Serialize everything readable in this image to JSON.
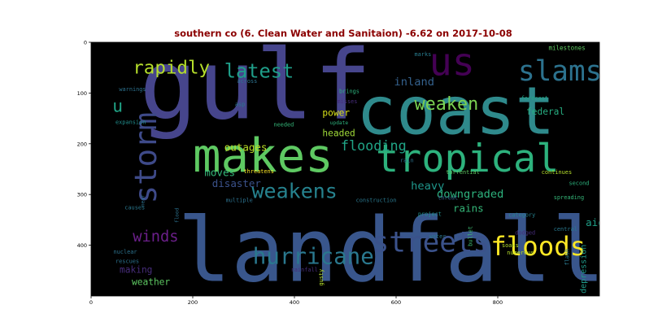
{
  "chart_data": {
    "type": "wordcloud",
    "title": "southern co (6. Clean Water and Sanitaion) -6.62 on 2017-10-08",
    "title_color": "#8b0000",
    "background": "#000000",
    "x_ticks": [
      "0",
      "200",
      "400",
      "600",
      "800"
    ],
    "y_ticks": [
      "0",
      "100",
      "200",
      "300",
      "400"
    ],
    "x_tick_values": [
      0,
      200,
      400,
      600,
      800
    ],
    "y_tick_values": [
      0,
      100,
      200,
      300,
      400
    ],
    "xlim": [
      0,
      1000
    ],
    "ylim": [
      500,
      0
    ],
    "words": [
      {
        "text": "gulf",
        "color": "#46458c",
        "x": 95,
        "y": 150,
        "size": 190,
        "rotate": 0
      },
      {
        "text": "coast",
        "color": "#2f8a8c",
        "x": 522,
        "y": 180,
        "size": 130,
        "rotate": 0
      },
      {
        "text": "landfall",
        "color": "#39568c",
        "x": 170,
        "y": 470,
        "size": 175,
        "rotate": 0
      },
      {
        "text": "makes",
        "color": "#5ec962",
        "x": 200,
        "y": 255,
        "size": 92,
        "rotate": 0
      },
      {
        "text": "tropical",
        "color": "#2db27d",
        "x": 560,
        "y": 255,
        "size": 75,
        "rotate": 0
      },
      {
        "text": "us",
        "color": "#440154",
        "x": 665,
        "y": 65,
        "size": 75,
        "rotate": 0
      },
      {
        "text": "storm",
        "color": "#3e4a89",
        "x": 128,
        "y": 318,
        "size": 60,
        "rotate": -90
      },
      {
        "text": "slams",
        "color": "#2c728e",
        "x": 840,
        "y": 75,
        "size": 55,
        "rotate": 0
      },
      {
        "text": "streets",
        "color": "#3b528b",
        "x": 553,
        "y": 413,
        "size": 55,
        "rotate": 0
      },
      {
        "text": "floods",
        "color": "#fde725",
        "x": 786,
        "y": 420,
        "size": 52,
        "rotate": 0
      },
      {
        "text": "hurricane",
        "color": "#2a788e",
        "x": 318,
        "y": 437,
        "size": 44,
        "rotate": 0
      },
      {
        "text": "weakens",
        "color": "#26828e",
        "x": 316,
        "y": 307,
        "size": 40,
        "rotate": 0
      },
      {
        "text": "latest",
        "color": "#1f9e89",
        "x": 262,
        "y": 70,
        "size": 38,
        "rotate": 0
      },
      {
        "text": "rapidly",
        "color": "#b5de2b",
        "x": 82,
        "y": 62,
        "size": 36,
        "rotate": 0
      },
      {
        "text": "weaken",
        "color": "#7ad151",
        "x": 636,
        "y": 133,
        "size": 35,
        "rotate": 0
      },
      {
        "text": "winds",
        "color": "#6b1f8a",
        "x": 82,
        "y": 393,
        "size": 30,
        "rotate": 0
      },
      {
        "text": "u",
        "color": "#20a386",
        "x": 42,
        "y": 137,
        "size": 34,
        "rotate": 0
      },
      {
        "text": "flooding",
        "color": "#20a486",
        "x": 491,
        "y": 213,
        "size": 27,
        "rotate": 0
      },
      {
        "text": "downgraded",
        "color": "#2db27d",
        "x": 680,
        "y": 306,
        "size": 22,
        "rotate": 0
      },
      {
        "text": "inland",
        "color": "#34618d",
        "x": 596,
        "y": 85,
        "size": 22,
        "rotate": 0
      },
      {
        "text": "heavy",
        "color": "#1f968b",
        "x": 629,
        "y": 290,
        "size": 22,
        "rotate": 0
      },
      {
        "text": "moves",
        "color": "#35b779",
        "x": 223,
        "y": 264,
        "size": 20,
        "rotate": 0
      },
      {
        "text": "disaster",
        "color": "#3b528b",
        "x": 238,
        "y": 285,
        "size": 20,
        "rotate": 0
      },
      {
        "text": "outages",
        "color": "#bddf26",
        "x": 262,
        "y": 214,
        "size": 20,
        "rotate": 0
      },
      {
        "text": "power",
        "color": "#d8e219",
        "x": 455,
        "y": 145,
        "size": 18,
        "rotate": 0
      },
      {
        "text": "headed",
        "color": "#a0da39",
        "x": 455,
        "y": 185,
        "size": 18,
        "rotate": 0
      },
      {
        "text": "federal",
        "color": "#27ad81",
        "x": 856,
        "y": 143,
        "size": 18,
        "rotate": 0
      },
      {
        "text": "aid",
        "color": "#1fa088",
        "x": 973,
        "y": 362,
        "size": 20,
        "rotate": 0
      },
      {
        "text": "rains",
        "color": "#35b779",
        "x": 712,
        "y": 334,
        "size": 20,
        "rotate": 0
      },
      {
        "text": "weather",
        "color": "#5ec962",
        "x": 80,
        "y": 478,
        "size": 18,
        "rotate": 0
      },
      {
        "text": "making",
        "color": "#472d7b",
        "x": 56,
        "y": 454,
        "size": 18,
        "rotate": 0
      },
      {
        "text": "depression",
        "color": "#1f9a8a",
        "x": 974,
        "y": 495,
        "size": 16,
        "rotate": -90
      },
      {
        "text": "milestones",
        "color": "#5ec962",
        "x": 900,
        "y": 15,
        "size": 12,
        "rotate": 0
      },
      {
        "text": "forecast",
        "color": "#22a785",
        "x": 846,
        "y": 114,
        "size": 11,
        "rotate": 0
      },
      {
        "text": "expansion",
        "color": "#218e8d",
        "x": 48,
        "y": 161,
        "size": 11,
        "rotate": 0
      },
      {
        "text": "warnings",
        "color": "#2c728e",
        "x": 55,
        "y": 96,
        "size": 11,
        "rotate": 0
      },
      {
        "text": "across",
        "color": "#2c728e",
        "x": 287,
        "y": 80,
        "size": 11,
        "rotate": 0
      },
      {
        "text": "asp",
        "color": "#2a788e",
        "x": 283,
        "y": 126,
        "size": 11,
        "rotate": 0
      },
      {
        "text": "needed",
        "color": "#35b779",
        "x": 359,
        "y": 166,
        "size": 11,
        "rotate": 0
      },
      {
        "text": "update",
        "color": "#2db27d",
        "x": 470,
        "y": 162,
        "size": 10,
        "rotate": 0
      },
      {
        "text": "brings",
        "color": "#2db27d",
        "x": 488,
        "y": 100,
        "size": 11,
        "rotate": 0
      },
      {
        "text": "misses",
        "color": "#472d7b",
        "x": 484,
        "y": 120,
        "size": 11,
        "rotate": 0
      },
      {
        "text": "marks",
        "color": "#287c8e",
        "x": 636,
        "y": 27,
        "size": 11,
        "rotate": 0
      },
      {
        "text": "rain",
        "color": "#2c728e",
        "x": 608,
        "y": 236,
        "size": 11,
        "rotate": 0
      },
      {
        "text": "threatens",
        "color": "#fde725",
        "x": 300,
        "y": 258,
        "size": 11,
        "rotate": 0
      },
      {
        "text": "torrential",
        "color": "#5ec962",
        "x": 698,
        "y": 260,
        "size": 11,
        "rotate": 0
      },
      {
        "text": "continues",
        "color": "#b5de2b",
        "x": 886,
        "y": 260,
        "size": 11,
        "rotate": 0
      },
      {
        "text": "second",
        "color": "#2db27d",
        "x": 940,
        "y": 281,
        "size": 11,
        "rotate": 0
      },
      {
        "text": "multiple",
        "color": "#2c728e",
        "x": 265,
        "y": 315,
        "size": 11,
        "rotate": 0
      },
      {
        "text": "construction",
        "color": "#2a788e",
        "x": 521,
        "y": 315,
        "size": 11,
        "rotate": 0
      },
      {
        "text": "threat",
        "color": "#35608d",
        "x": 682,
        "y": 310,
        "size": 11,
        "rotate": 0
      },
      {
        "text": "spreading",
        "color": "#35b779",
        "x": 910,
        "y": 309,
        "size": 11,
        "rotate": 0
      },
      {
        "text": "causes",
        "color": "#2a788e",
        "x": 66,
        "y": 329,
        "size": 11,
        "rotate": 0
      },
      {
        "text": "project",
        "color": "#21918c",
        "x": 643,
        "y": 342,
        "size": 11,
        "rotate": 0
      },
      {
        "text": "category",
        "color": "#26828e",
        "x": 821,
        "y": 344,
        "size": 11,
        "rotate": 0
      },
      {
        "text": "water",
        "color": "#2a788e",
        "x": 665,
        "y": 386,
        "size": 11,
        "rotate": 0
      },
      {
        "text": "dodged",
        "color": "#472d7b",
        "x": 834,
        "y": 379,
        "size": 11,
        "rotate": 0
      },
      {
        "text": "central",
        "color": "#2a788e",
        "x": 910,
        "y": 372,
        "size": 11,
        "rotate": 0
      },
      {
        "text": "soaks",
        "color": "#b5de2b",
        "x": 808,
        "y": 404,
        "size": 11,
        "rotate": 0
      },
      {
        "text": "numerous",
        "color": "#b5de2b",
        "x": 818,
        "y": 418,
        "size": 11,
        "rotate": 0
      },
      {
        "text": "nuclear",
        "color": "#2c728e",
        "x": 44,
        "y": 417,
        "size": 11,
        "rotate": 0
      },
      {
        "text": "rescues",
        "color": "#2c728e",
        "x": 48,
        "y": 435,
        "size": 11,
        "rotate": 0
      },
      {
        "text": "rainfall",
        "color": "#472d7b",
        "x": 393,
        "y": 452,
        "size": 11,
        "rotate": 0
      },
      {
        "text": "bullet",
        "color": "#3fbc73",
        "x": 750,
        "y": 402,
        "size": 11,
        "rotate": -90
      },
      {
        "text": "gusty",
        "color": "#b5de2b",
        "x": 456,
        "y": 480,
        "size": 11,
        "rotate": -90
      },
      {
        "text": "flash",
        "color": "#2a788e",
        "x": 940,
        "y": 440,
        "size": 11,
        "rotate": -90
      },
      {
        "text": "flood",
        "color": "#2c728e",
        "x": 172,
        "y": 356,
        "size": 10,
        "rotate": -90
      },
      {
        "text": "near",
        "color": "#2c728e",
        "x": 105,
        "y": 324,
        "size": 10,
        "rotate": -90
      }
    ]
  }
}
